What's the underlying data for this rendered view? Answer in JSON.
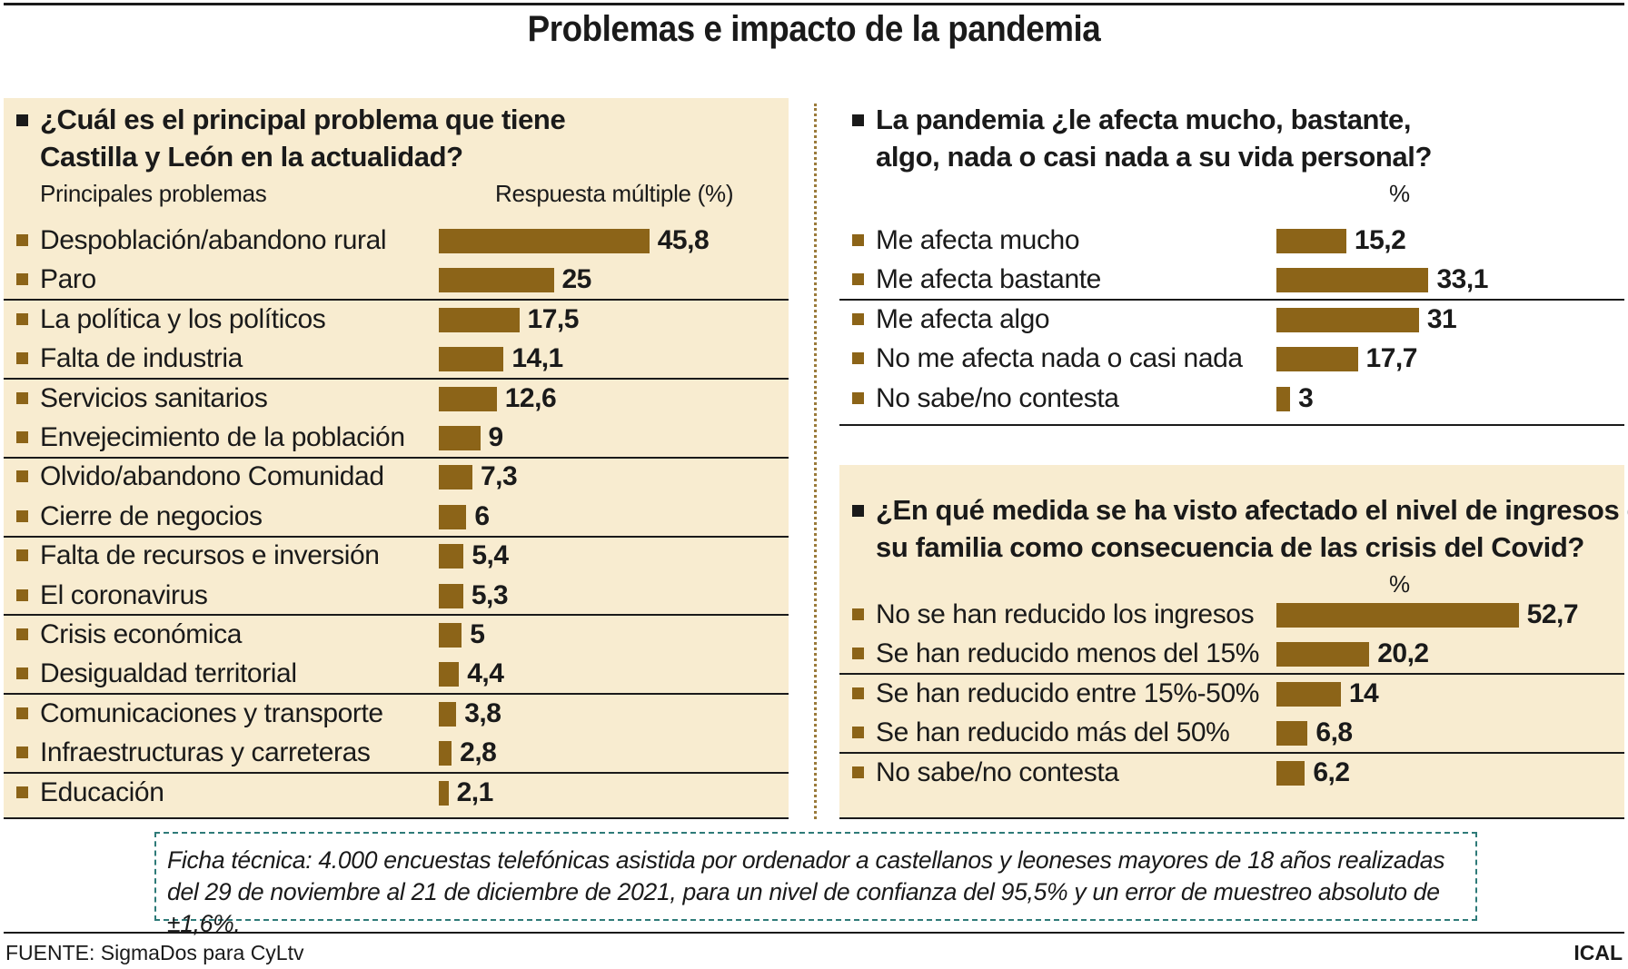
{
  "title": "Problemas e impacto de la pandemia",
  "colors": {
    "bar": "#8c6418",
    "panel_bg": "#f8ecd0",
    "text": "#1a1a1a"
  },
  "panel1": {
    "question_line1": "¿Cuál es el principal problema que tiene",
    "question_line2": "Castilla y León en la actualidad?",
    "col_label": "Principales problemas",
    "unit_label": "Respuesta múltiple (%)"
  },
  "panel2": {
    "question_line1": "La pandemia ¿le afecta mucho, bastante,",
    "question_line2": "algo, nada o casi nada a su vida personal?",
    "unit_label": "%"
  },
  "panel3": {
    "question_line1": "¿En qué medida se ha visto afectado el nivel de ingresos de",
    "question_line2": "su familia como consecuencia de las crisis del Covid?",
    "unit_label": "%"
  },
  "chart_data": [
    {
      "type": "bar",
      "orientation": "horizontal",
      "title": "¿Cuál es el principal problema que tiene Castilla y León en la actualidad?",
      "xlabel": "Respuesta múltiple (%)",
      "categories": [
        "Despoblación/abandono rural",
        "Paro",
        "La política y los políticos",
        "Falta de industria",
        "Servicios sanitarios",
        "Envejecimiento de la población",
        "Olvido/abandono Comunidad",
        "Cierre de negocios",
        "Falta de recursos e inversión",
        "El coronavirus",
        "Crisis económica",
        "Desigualdad territorial",
        "Comunicaciones y transporte",
        "Infraestructuras y carreteras",
        "Educación"
      ],
      "values": [
        45.8,
        25,
        17.5,
        14.1,
        12.6,
        9,
        7.3,
        6,
        5.4,
        5.3,
        5,
        4.4,
        3.8,
        2.8,
        2.1
      ],
      "value_labels": [
        "45,8",
        "25",
        "17,5",
        "14,1",
        "12,6",
        "9",
        "7,3",
        "6",
        "5,4",
        "5,3",
        "5",
        "4,4",
        "3,8",
        "2,8",
        "2,1"
      ]
    },
    {
      "type": "bar",
      "orientation": "horizontal",
      "title": "La pandemia ¿le afecta mucho, bastante, algo, nada o casi nada a su vida personal?",
      "xlabel": "%",
      "categories": [
        "Me afecta mucho",
        "Me afecta bastante",
        "Me afecta algo",
        "No me afecta nada o casi nada",
        "No sabe/no contesta"
      ],
      "values": [
        15.2,
        33.1,
        31,
        17.7,
        3
      ],
      "value_labels": [
        "15,2",
        "33,1",
        "31",
        "17,7",
        "3"
      ]
    },
    {
      "type": "bar",
      "orientation": "horizontal",
      "title": "¿En qué medida se ha visto afectado el nivel de ingresos de su familia como consecuencia de las crisis del Covid?",
      "xlabel": "%",
      "categories": [
        "No se han reducido los ingresos",
        "Se han reducido menos del 15%",
        "Se han reducido entre 15%-50%",
        "Se han reducido más del 50%",
        "No sabe/no contesta"
      ],
      "values": [
        52.7,
        20.2,
        14,
        6.8,
        6.2
      ],
      "value_labels": [
        "52,7",
        "20,2",
        "14",
        "6,8",
        "6,2"
      ]
    }
  ],
  "ficha": "Ficha técnica: 4.000 encuestas telefónicas asistida por ordenador a castellanos y leoneses mayores de 18 años realizadas del 29 de noviembre al 21 de diciembre de 2021, para un nivel de confianza del 95,5% y un error de muestreo absoluto de ±1,6%.",
  "source": "FUENTE: SigmaDos para CyLtv",
  "agency": "ICAL"
}
